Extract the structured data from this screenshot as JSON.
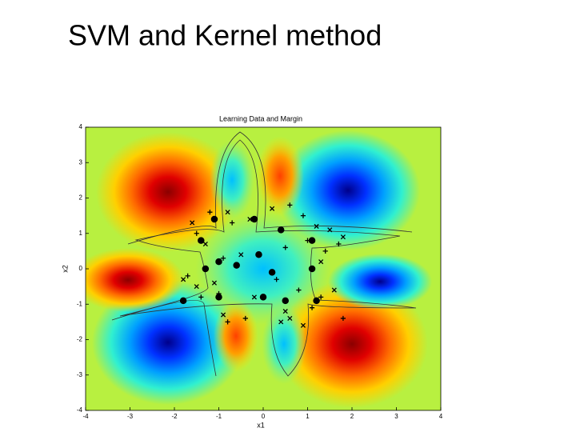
{
  "slide_title": "SVM and Kernel method",
  "chart_data": {
    "type": "contour",
    "title": "Learning Data and Margin",
    "xlabel": "x1",
    "ylabel": "x2",
    "xlim": [
      -4,
      4
    ],
    "ylim": [
      -4,
      4
    ],
    "xticks": [
      -4,
      -3,
      -2,
      -1,
      0,
      1,
      2,
      3,
      4
    ],
    "yticks": [
      -4,
      -3,
      -2,
      -1,
      0,
      1,
      2,
      3,
      4
    ],
    "series": [
      {
        "marker": "x",
        "color": "#000000",
        "x": [
          -1.6,
          -1.3,
          -0.8,
          -0.3,
          0.2,
          -0.5,
          1.2,
          1.5,
          1.8,
          -1.5,
          -1.8,
          -0.2,
          0.5,
          0.4,
          0.6,
          1.3,
          1.6,
          -1.1,
          -0.9,
          0.9
        ],
        "y": [
          1.3,
          0.7,
          1.6,
          1.4,
          1.7,
          0.4,
          1.2,
          1.1,
          0.9,
          -0.5,
          -0.3,
          -0.8,
          -1.2,
          -1.5,
          -1.4,
          0.2,
          -0.6,
          -0.4,
          -1.3,
          -1.6
        ]
      },
      {
        "marker": "+",
        "color": "#000000",
        "x": [
          -1.2,
          -1.5,
          -0.7,
          0.6,
          0.9,
          1.0,
          1.4,
          1.7,
          -1.7,
          -1.0,
          -0.8,
          -0.4,
          0.3,
          0.8,
          1.3,
          1.8,
          -1.4,
          -0.9,
          0.5,
          1.1
        ],
        "y": [
          1.6,
          1.0,
          1.3,
          1.8,
          1.5,
          0.8,
          0.5,
          0.7,
          -0.2,
          -0.7,
          -1.5,
          -1.4,
          -0.3,
          -0.6,
          -0.8,
          -1.4,
          -0.8,
          0.3,
          0.6,
          -1.1
        ]
      },
      {
        "marker": "o",
        "color": "#000000",
        "x": [
          -1.1,
          -1.4,
          -1.0,
          -0.2,
          0.4,
          -0.1,
          1.1,
          1.2,
          -1.8,
          -1.0,
          0.0,
          0.5,
          1.1,
          -1.3,
          -0.6,
          0.2
        ],
        "y": [
          1.4,
          0.8,
          0.2,
          1.4,
          1.1,
          0.4,
          0.8,
          -0.9,
          -0.9,
          -0.8,
          -0.8,
          -0.9,
          0.0,
          0.0,
          0.1,
          -0.1
        ]
      }
    ]
  }
}
